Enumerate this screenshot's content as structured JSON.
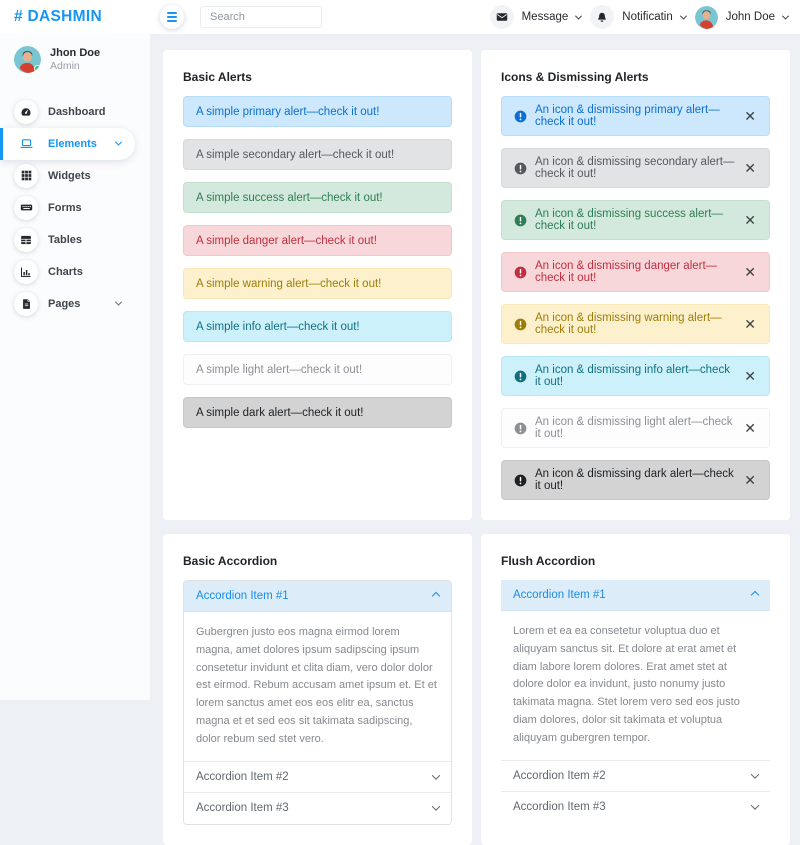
{
  "brand": {
    "logo": "# DASHMIN"
  },
  "topbar": {
    "search_placeholder": "Search",
    "message_label": "Message",
    "notification_label": "Notificatin",
    "user_name": "John Doe",
    "icons": [
      "hamburger-icon",
      "envelope-icon",
      "bell-icon",
      "chevron-down-icon"
    ]
  },
  "sidebar": {
    "user": {
      "name": "Jhon Doe",
      "role": "Admin"
    },
    "items": [
      {
        "label": "Dashboard",
        "icon": "gauge-icon",
        "active": false,
        "has_chevron": false
      },
      {
        "label": "Elements",
        "icon": "laptop-icon",
        "active": true,
        "has_chevron": true
      },
      {
        "label": "Widgets",
        "icon": "grid-icon",
        "active": false,
        "has_chevron": false
      },
      {
        "label": "Forms",
        "icon": "keyboard-icon",
        "active": false,
        "has_chevron": false
      },
      {
        "label": "Tables",
        "icon": "table-icon",
        "active": false,
        "has_chevron": false
      },
      {
        "label": "Charts",
        "icon": "chart-bar-icon",
        "active": false,
        "has_chevron": false
      },
      {
        "label": "Pages",
        "icon": "file-icon",
        "active": false,
        "has_chevron": true
      }
    ]
  },
  "cards": {
    "basic_alerts": {
      "title": "Basic Alerts",
      "alerts": [
        {
          "variant": "primary",
          "text": "A simple primary alert—check it out!"
        },
        {
          "variant": "secondary",
          "text": "A simple secondary alert—check it out!"
        },
        {
          "variant": "success",
          "text": "A simple success alert—check it out!"
        },
        {
          "variant": "danger",
          "text": "A simple danger alert—check it out!"
        },
        {
          "variant": "warning",
          "text": "A simple warning alert—check it out!"
        },
        {
          "variant": "info",
          "text": "A simple info alert—check it out!"
        },
        {
          "variant": "light",
          "text": "A simple light alert—check it out!"
        },
        {
          "variant": "dark",
          "text": "A simple dark alert—check it out!"
        }
      ]
    },
    "dismissing_alerts": {
      "title": "Icons & Dismissing Alerts",
      "icon": "exclamation-circle-icon",
      "close_glyph": "✕",
      "alerts": [
        {
          "variant": "primary",
          "text": "An icon & dismissing primary alert—check it out!"
        },
        {
          "variant": "secondary",
          "text": "An icon & dismissing secondary alert—check it out!"
        },
        {
          "variant": "success",
          "text": "An icon & dismissing success alert—check it out!"
        },
        {
          "variant": "danger",
          "text": "An icon & dismissing danger alert—check it out!"
        },
        {
          "variant": "warning",
          "text": "An icon & dismissing warning alert—check it out!"
        },
        {
          "variant": "info",
          "text": "An icon & dismissing info alert—check it out!"
        },
        {
          "variant": "light",
          "text": "An icon & dismissing light alert—check it out!"
        },
        {
          "variant": "dark",
          "text": "An icon & dismissing dark alert—check it out!"
        }
      ]
    },
    "basic_accordion": {
      "title": "Basic Accordion",
      "items": [
        {
          "label": "Accordion Item #1",
          "expanded": true,
          "body": "Gubergren justo eos magna eirmod lorem magna, amet dolores ipsum sadipscing ipsum consetetur invidunt et clita diam, vero dolor dolor est eirmod. Rebum accusam amet ipsum et. Et et lorem sanctus amet eos eos elitr ea, sanctus magna et et sed eos sit takimata sadipscing, dolor rebum sed stet vero."
        },
        {
          "label": "Accordion Item #2",
          "expanded": false,
          "body": ""
        },
        {
          "label": "Accordion Item #3",
          "expanded": false,
          "body": ""
        }
      ]
    },
    "flush_accordion": {
      "title": "Flush Accordion",
      "items": [
        {
          "label": "Accordion Item #1",
          "expanded": true,
          "body": "Lorem et ea ea consetetur voluptua duo et aliquyam sanctus sit. Et dolore at erat amet et diam labore lorem dolores. Erat amet stet at dolore dolor ea invidunt, justo nonumy justo takimata magna. Stet lorem vero sed eos justo diam dolores, dolor sit takimata et voluptua aliquyam gubergren tempor."
        },
        {
          "label": "Accordion Item #2",
          "expanded": false,
          "body": ""
        },
        {
          "label": "Accordion Item #3",
          "expanded": false,
          "body": ""
        }
      ]
    }
  },
  "colors": {
    "brand_blue": "#1596f3",
    "body_bg": "#edf1f5",
    "surface": "#ffffff",
    "status_online": "#35c06e",
    "alert_text": {
      "primary": "#0b6fd4",
      "secondary": "#55595e",
      "success": "#2e7d54",
      "danger": "#c12e3e",
      "warning": "#9c7d0a",
      "info": "#126f80",
      "light": "#8d9095",
      "dark": "#1d2124"
    },
    "accordion_active_bg": "#dcedf9",
    "accordion_active_text": "#1b8ce8"
  }
}
